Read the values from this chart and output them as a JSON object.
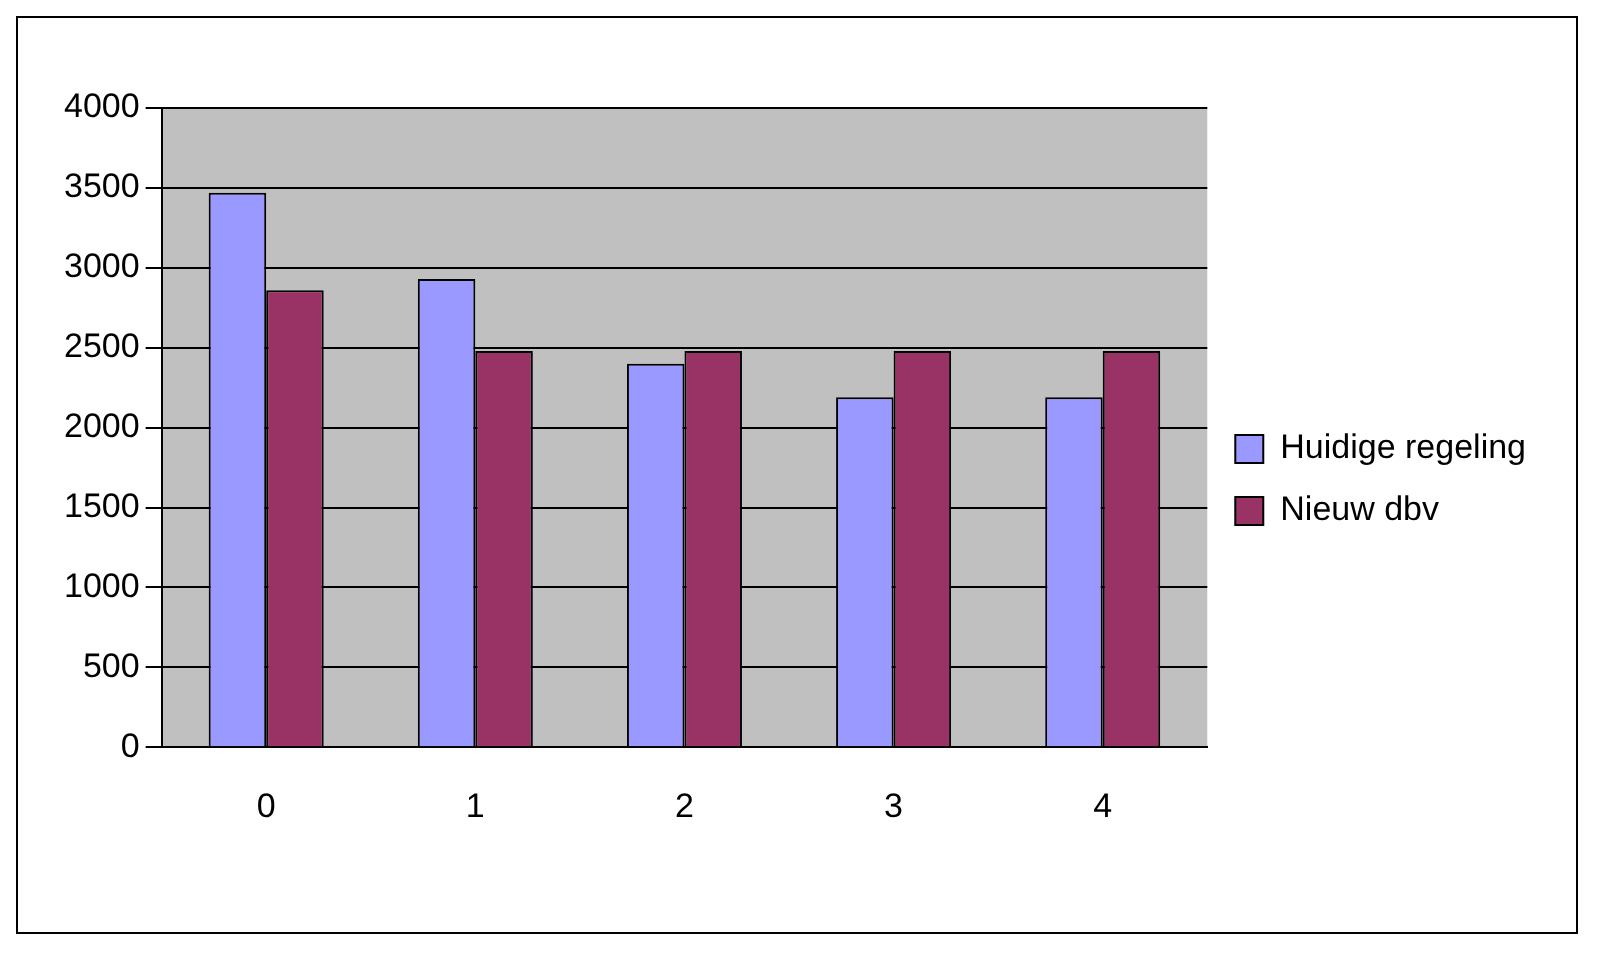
{
  "chart_data": {
    "type": "bar",
    "categories": [
      "0",
      "1",
      "2",
      "3",
      "4"
    ],
    "series": [
      {
        "name": "Huidige regeling",
        "color": "#9999ff",
        "values": [
          3470,
          2930,
          2400,
          2190,
          2190
        ]
      },
      {
        "name": "Nieuw dbv",
        "color": "#993366",
        "values": [
          2860,
          2480,
          2480,
          2480,
          2480
        ]
      }
    ],
    "ylim": [
      0,
      4000
    ],
    "yticks": [
      0,
      500,
      1000,
      1500,
      2000,
      2500,
      3000,
      3500,
      4000
    ],
    "grid": "y",
    "legend": "right"
  }
}
